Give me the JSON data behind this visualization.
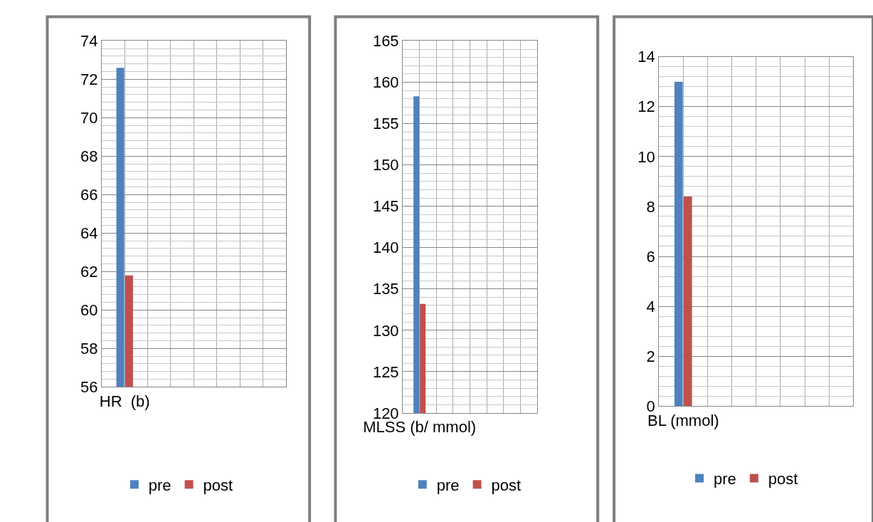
{
  "chart_data": [
    {
      "type": "bar",
      "categories": [
        "HR  (b)",
        null,
        null,
        null
      ],
      "series": [
        {
          "name": "pre",
          "color": "#4f81bd",
          "values": [
            72.6,
            null,
            null,
            null
          ]
        },
        {
          "name": "post",
          "color": "#c0504d",
          "values": [
            61.8,
            null,
            null,
            null
          ]
        }
      ],
      "ylim": [
        56,
        74
      ],
      "yticks": [
        56,
        58,
        60,
        62,
        64,
        66,
        68,
        70,
        72,
        74
      ],
      "grid": true,
      "legend": "bottom"
    },
    {
      "type": "bar",
      "categories": [
        "MLSS (b/ mmol)",
        null,
        null,
        null
      ],
      "series": [
        {
          "name": "pre",
          "color": "#4f81bd",
          "values": [
            158.3,
            null,
            null,
            null
          ]
        },
        {
          "name": "post",
          "color": "#c0504d",
          "values": [
            133.2,
            null,
            null,
            null
          ]
        }
      ],
      "ylim": [
        120,
        165
      ],
      "yticks": [
        120,
        125,
        130,
        135,
        140,
        145,
        150,
        155,
        160,
        165
      ],
      "grid": true,
      "legend": "bottom"
    },
    {
      "type": "bar",
      "categories": [
        "BL (mmol)",
        null,
        null,
        null
      ],
      "series": [
        {
          "name": "pre",
          "color": "#4f81bd",
          "values": [
            13.0,
            null,
            null,
            null
          ]
        },
        {
          "name": "post",
          "color": "#c0504d",
          "values": [
            8.4,
            null,
            null,
            null
          ]
        }
      ],
      "ylim": [
        0,
        14
      ],
      "yticks": [
        0,
        2,
        4,
        6,
        8,
        10,
        12,
        14
      ],
      "grid": true,
      "legend": "bottom"
    }
  ]
}
